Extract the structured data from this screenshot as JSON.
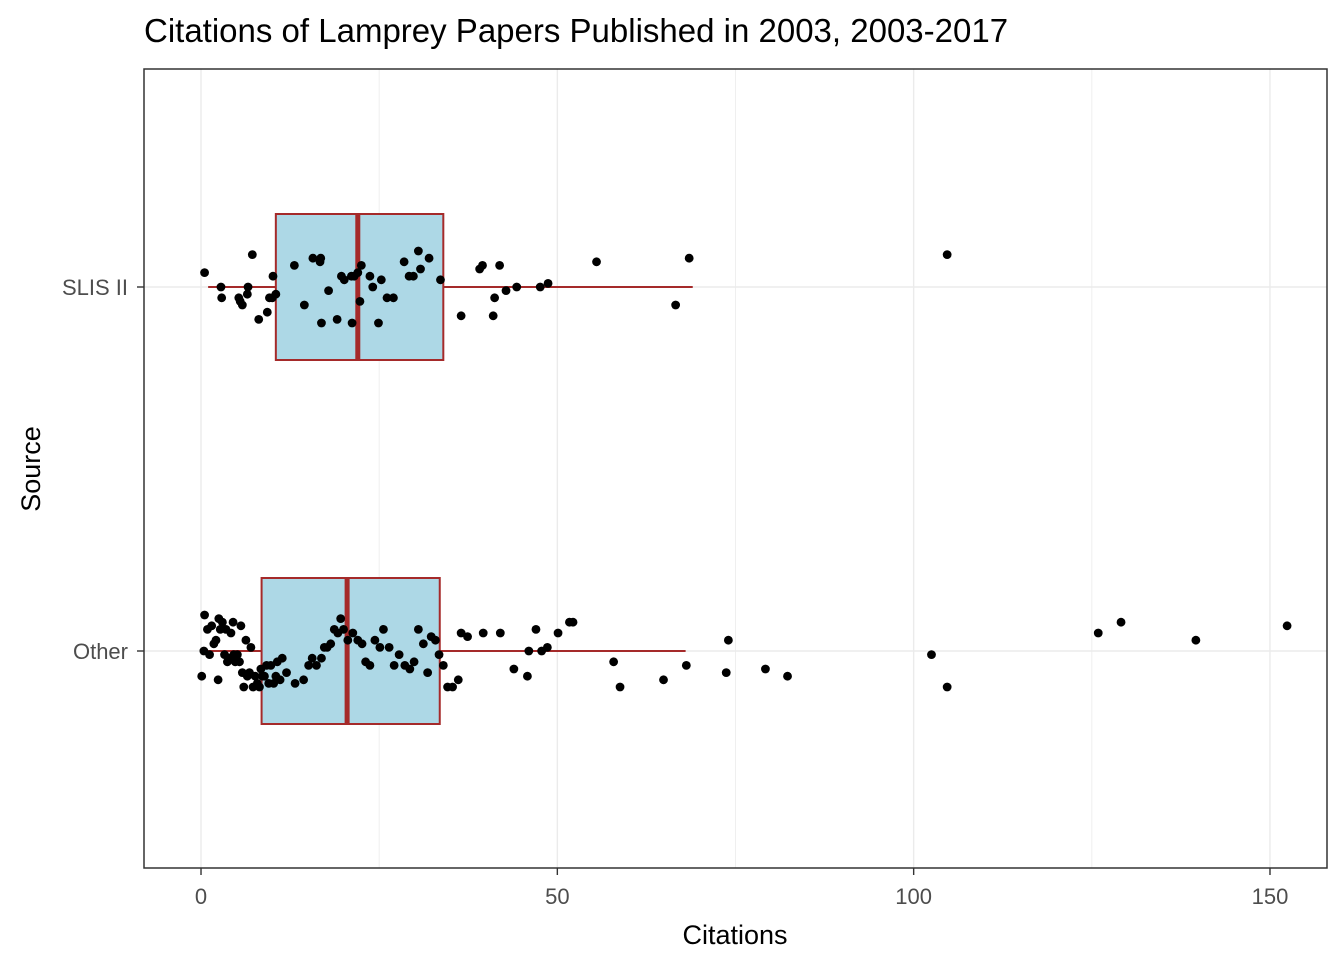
{
  "chart_data": {
    "type": "boxplot",
    "orientation": "horizontal",
    "title": "Citations of Lamprey Papers Published in 2003, 2003-2017",
    "xlabel": "Citations",
    "ylabel": "Source",
    "xlim": [
      -8,
      158
    ],
    "x_ticks": [
      0,
      50,
      100,
      150
    ],
    "x_tick_labels": [
      "0",
      "50",
      "100",
      "150"
    ],
    "categories": [
      "SLIS II",
      "Other"
    ],
    "grid": true,
    "legend": "none",
    "colors": {
      "box_fill": "#add8e6",
      "box_stroke": "#a52a2a",
      "point": "#000000",
      "grid": "#ebebeb",
      "panel_border": "#333333"
    },
    "series": [
      {
        "category": "SLIS II",
        "box": {
          "min": 1,
          "q1": 10.5,
          "median": 22,
          "q3": 34,
          "max": 69
        },
        "points": [
          {
            "x": 0.5,
            "y": 0.04
          },
          {
            "x": 2.8,
            "y": 0
          },
          {
            "x": 2.9,
            "y": -0.03
          },
          {
            "x": 5.3,
            "y": -0.03
          },
          {
            "x": 5.5,
            "y": -0.04
          },
          {
            "x": 5.8,
            "y": -0.05
          },
          {
            "x": 6.5,
            "y": -0.02
          },
          {
            "x": 6.6,
            "y": 0
          },
          {
            "x": 7.2,
            "y": 0.09
          },
          {
            "x": 8.1,
            "y": -0.09
          },
          {
            "x": 9.3,
            "y": -0.07
          },
          {
            "x": 9.6,
            "y": -0.03
          },
          {
            "x": 10.0,
            "y": -0.03
          },
          {
            "x": 10.1,
            "y": 0.03
          },
          {
            "x": 10.5,
            "y": -0.02
          },
          {
            "x": 13.1,
            "y": 0.06
          },
          {
            "x": 14.5,
            "y": -0.05
          },
          {
            "x": 15.7,
            "y": 0.08
          },
          {
            "x": 16.7,
            "y": 0.07
          },
          {
            "x": 16.8,
            "y": 0.08
          },
          {
            "x": 16.9,
            "y": -0.1
          },
          {
            "x": 17.9,
            "y": -0.01
          },
          {
            "x": 19.1,
            "y": -0.09
          },
          {
            "x": 19.7,
            "y": 0.03
          },
          {
            "x": 20.1,
            "y": 0.02
          },
          {
            "x": 21.1,
            "y": 0.03
          },
          {
            "x": 21.2,
            "y": -0.1
          },
          {
            "x": 21.5,
            "y": 0.03
          },
          {
            "x": 22.0,
            "y": 0.04
          },
          {
            "x": 22.3,
            "y": -0.04
          },
          {
            "x": 22.5,
            "y": 0.06
          },
          {
            "x": 23.7,
            "y": 0.03
          },
          {
            "x": 24.1,
            "y": 0
          },
          {
            "x": 24.9,
            "y": -0.1
          },
          {
            "x": 25.3,
            "y": 0.02
          },
          {
            "x": 26.1,
            "y": -0.03
          },
          {
            "x": 27.0,
            "y": -0.03
          },
          {
            "x": 28.5,
            "y": 0.07
          },
          {
            "x": 29.2,
            "y": 0.03
          },
          {
            "x": 29.8,
            "y": 0.03
          },
          {
            "x": 30.5,
            "y": 0.1
          },
          {
            "x": 30.8,
            "y": 0.05
          },
          {
            "x": 32.0,
            "y": 0.08
          },
          {
            "x": 33.6,
            "y": 0.02
          },
          {
            "x": 36.5,
            "y": -0.08
          },
          {
            "x": 39.1,
            "y": 0.05
          },
          {
            "x": 39.5,
            "y": 0.06
          },
          {
            "x": 41.0,
            "y": -0.08
          },
          {
            "x": 41.2,
            "y": -0.03
          },
          {
            "x": 41.9,
            "y": 0.06
          },
          {
            "x": 42.8,
            "y": -0.01
          },
          {
            "x": 44.3,
            "y": 0
          },
          {
            "x": 47.6,
            "y": 0
          },
          {
            "x": 48.7,
            "y": 0.01
          },
          {
            "x": 55.5,
            "y": 0.07
          },
          {
            "x": 66.6,
            "y": -0.05
          },
          {
            "x": 68.5,
            "y": 0.08
          },
          {
            "x": 104.7,
            "y": 0.09
          }
        ]
      },
      {
        "category": "Other",
        "box": {
          "min": 0,
          "q1": 8.5,
          "median": 20.5,
          "q3": 33.5,
          "max": 68
        },
        "points": [
          {
            "x": 0.1,
            "y": -0.07
          },
          {
            "x": 0.4,
            "y": 0
          },
          {
            "x": 0.5,
            "y": 0.1
          },
          {
            "x": 0.9,
            "y": 0.06
          },
          {
            "x": 1.2,
            "y": -0.01
          },
          {
            "x": 1.5,
            "y": 0.07
          },
          {
            "x": 1.8,
            "y": 0.02
          },
          {
            "x": 2.1,
            "y": 0.03
          },
          {
            "x": 2.4,
            "y": -0.08
          },
          {
            "x": 2.5,
            "y": 0.09
          },
          {
            "x": 2.7,
            "y": 0.06
          },
          {
            "x": 3.0,
            "y": 0.08
          },
          {
            "x": 3.3,
            "y": -0.01
          },
          {
            "x": 3.5,
            "y": 0.06
          },
          {
            "x": 3.7,
            "y": -0.03
          },
          {
            "x": 3.9,
            "y": -0.02
          },
          {
            "x": 4.2,
            "y": 0.05
          },
          {
            "x": 4.5,
            "y": 0.08
          },
          {
            "x": 4.6,
            "y": -0.01
          },
          {
            "x": 4.8,
            "y": -0.03
          },
          {
            "x": 5.1,
            "y": -0.01
          },
          {
            "x": 5.4,
            "y": -0.03
          },
          {
            "x": 5.6,
            "y": 0.07
          },
          {
            "x": 5.8,
            "y": -0.06
          },
          {
            "x": 6.0,
            "y": -0.1
          },
          {
            "x": 6.3,
            "y": 0.03
          },
          {
            "x": 6.5,
            "y": -0.07
          },
          {
            "x": 6.8,
            "y": -0.06
          },
          {
            "x": 7.0,
            "y": 0.01
          },
          {
            "x": 7.3,
            "y": -0.1
          },
          {
            "x": 7.6,
            "y": -0.07
          },
          {
            "x": 7.9,
            "y": -0.09
          },
          {
            "x": 8.2,
            "y": -0.1
          },
          {
            "x": 8.4,
            "y": -0.05
          },
          {
            "x": 8.6,
            "y": -0.07
          },
          {
            "x": 8.9,
            "y": -0.07
          },
          {
            "x": 9.2,
            "y": -0.04
          },
          {
            "x": 9.5,
            "y": -0.09
          },
          {
            "x": 9.8,
            "y": -0.04
          },
          {
            "x": 10.2,
            "y": -0.09
          },
          {
            "x": 10.5,
            "y": -0.07
          },
          {
            "x": 10.7,
            "y": -0.03
          },
          {
            "x": 11.1,
            "y": -0.08
          },
          {
            "x": 11.4,
            "y": -0.02
          },
          {
            "x": 12.0,
            "y": -0.06
          },
          {
            "x": 13.2,
            "y": -0.09
          },
          {
            "x": 14.4,
            "y": -0.08
          },
          {
            "x": 15.1,
            "y": -0.04
          },
          {
            "x": 15.6,
            "y": -0.02
          },
          {
            "x": 16.2,
            "y": -0.04
          },
          {
            "x": 16.9,
            "y": -0.02
          },
          {
            "x": 17.3,
            "y": 0.01
          },
          {
            "x": 17.7,
            "y": 0.01
          },
          {
            "x": 18.2,
            "y": 0.02
          },
          {
            "x": 18.7,
            "y": 0.06
          },
          {
            "x": 19.2,
            "y": 0.05
          },
          {
            "x": 19.6,
            "y": 0.09
          },
          {
            "x": 20.0,
            "y": 0.06
          },
          {
            "x": 20.6,
            "y": 0.03
          },
          {
            "x": 21.3,
            "y": 0.05
          },
          {
            "x": 22.0,
            "y": 0.03
          },
          {
            "x": 22.6,
            "y": 0.02
          },
          {
            "x": 23.1,
            "y": -0.03
          },
          {
            "x": 23.7,
            "y": -0.04
          },
          {
            "x": 24.4,
            "y": 0.03
          },
          {
            "x": 25.1,
            "y": 0.01
          },
          {
            "x": 25.6,
            "y": 0.06
          },
          {
            "x": 26.4,
            "y": 0.01
          },
          {
            "x": 27.1,
            "y": -0.04
          },
          {
            "x": 27.8,
            "y": -0.01
          },
          {
            "x": 28.6,
            "y": -0.04
          },
          {
            "x": 29.3,
            "y": -0.05
          },
          {
            "x": 29.9,
            "y": -0.03
          },
          {
            "x": 30.5,
            "y": 0.06
          },
          {
            "x": 31.2,
            "y": 0.02
          },
          {
            "x": 31.8,
            "y": -0.06
          },
          {
            "x": 32.3,
            "y": 0.04
          },
          {
            "x": 32.9,
            "y": 0.03
          },
          {
            "x": 33.4,
            "y": -0.01
          },
          {
            "x": 34.0,
            "y": -0.04
          },
          {
            "x": 34.6,
            "y": -0.1
          },
          {
            "x": 35.3,
            "y": -0.1
          },
          {
            "x": 36.1,
            "y": -0.08
          },
          {
            "x": 36.5,
            "y": 0.05
          },
          {
            "x": 37.4,
            "y": 0.04
          },
          {
            "x": 39.6,
            "y": 0.05
          },
          {
            "x": 42.0,
            "y": 0.05
          },
          {
            "x": 43.9,
            "y": -0.05
          },
          {
            "x": 45.8,
            "y": -0.07
          },
          {
            "x": 46.0,
            "y": 0
          },
          {
            "x": 47.0,
            "y": 0.06
          },
          {
            "x": 47.8,
            "y": 0
          },
          {
            "x": 48.6,
            "y": 0.01
          },
          {
            "x": 50.1,
            "y": 0.05
          },
          {
            "x": 51.7,
            "y": 0.08
          },
          {
            "x": 52.2,
            "y": 0.08
          },
          {
            "x": 57.9,
            "y": -0.03
          },
          {
            "x": 58.8,
            "y": -0.1
          },
          {
            "x": 64.9,
            "y": -0.08
          },
          {
            "x": 68.1,
            "y": -0.04
          },
          {
            "x": 73.7,
            "y": -0.06
          },
          {
            "x": 74.0,
            "y": 0.03
          },
          {
            "x": 79.2,
            "y": -0.05
          },
          {
            "x": 82.3,
            "y": -0.07
          },
          {
            "x": 102.5,
            "y": -0.01
          },
          {
            "x": 104.7,
            "y": -0.1
          },
          {
            "x": 125.9,
            "y": 0.05
          },
          {
            "x": 129.1,
            "y": 0.08
          },
          {
            "x": 139.6,
            "y": 0.03
          },
          {
            "x": 152.4,
            "y": 0.07
          }
        ]
      }
    ]
  }
}
